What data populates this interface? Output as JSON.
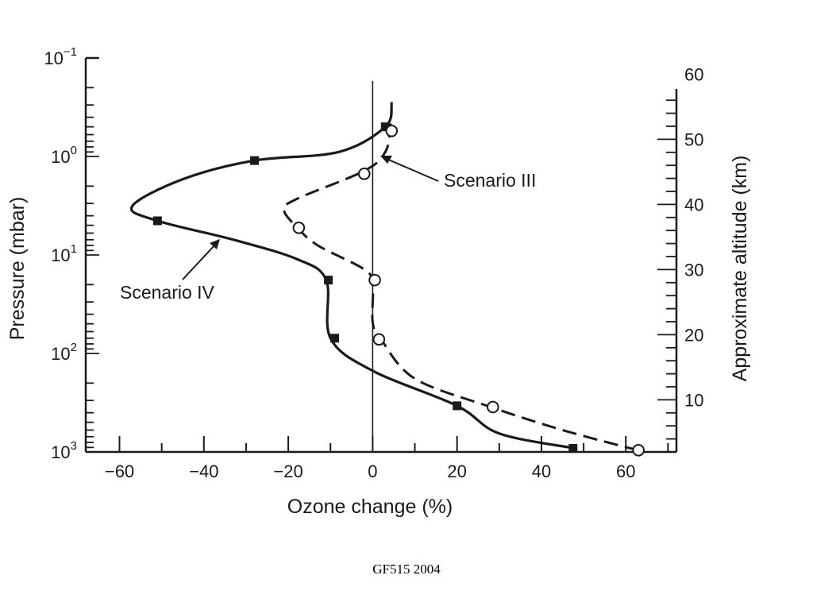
{
  "chart_data": {
    "type": "line",
    "title": "",
    "xlabel": "Ozone change (%)",
    "ylabel_left": "Pressure (mbar)",
    "ylabel_right": "Approximate altitude (km)",
    "xlim": [
      -68,
      72
    ],
    "x_ticks": [
      -60,
      -40,
      -20,
      0,
      20,
      40,
      60
    ],
    "x_tick_labels": [
      "−60",
      "−40",
      "−20",
      "0",
      "20",
      "40",
      "60"
    ],
    "ylim_pressure": [
      0.1,
      1000
    ],
    "y_scale": "log, inverted (pressure increases downward)",
    "y_ticks_pressure": [
      {
        "value": 0.1,
        "base": "10",
        "exp": "−1"
      },
      {
        "value": 1,
        "base": "10",
        "exp": "0"
      },
      {
        "value": 10,
        "base": "10",
        "exp": "1"
      },
      {
        "value": 100,
        "base": "10",
        "exp": "2"
      },
      {
        "value": 1000,
        "base": "10",
        "exp": "3"
      }
    ],
    "y_ticks_altitude_km": [
      10,
      20,
      30,
      40,
      50,
      60
    ],
    "grid": false,
    "reference_line_x": 0,
    "series": [
      {
        "name": "Scenario IV",
        "style": "solid",
        "marker": "filled-square",
        "points": [
          {
            "x": 4.5,
            "p": 0.3
          },
          {
            "x": 3,
            "p": 0.5
          },
          {
            "x": -8,
            "p": 0.9
          },
          {
            "x": -28,
            "p": 1.1
          },
          {
            "x": -45,
            "p": 1.7
          },
          {
            "x": -57,
            "p": 3.2
          },
          {
            "x": -51,
            "p": 4.5
          },
          {
            "x": -33,
            "p": 7
          },
          {
            "x": -18,
            "p": 11
          },
          {
            "x": -11,
            "p": 18
          },
          {
            "x": -10,
            "p": 70
          },
          {
            "x": 0,
            "p": 150
          },
          {
            "x": 20,
            "p": 340
          },
          {
            "x": 30,
            "p": 650
          },
          {
            "x": 48,
            "p": 920
          }
        ],
        "markers": [
          {
            "x": 3,
            "p": 0.5
          },
          {
            "x": -28,
            "p": 1.1
          },
          {
            "x": -51,
            "p": 4.5
          },
          {
            "x": -10.5,
            "p": 18
          },
          {
            "x": -9,
            "p": 70
          },
          {
            "x": 20,
            "p": 340
          },
          {
            "x": 47.5,
            "p": 920
          }
        ]
      },
      {
        "name": "Scenario III",
        "style": "dashed",
        "marker": "open-circle",
        "points": [
          {
            "x": 4.5,
            "p": 0.28
          },
          {
            "x": 4.2,
            "p": 0.5
          },
          {
            "x": 3,
            "p": 0.9
          },
          {
            "x": -2,
            "p": 1.4
          },
          {
            "x": -18,
            "p": 2.7
          },
          {
            "x": -21,
            "p": 3.5
          },
          {
            "x": -18,
            "p": 5.2
          },
          {
            "x": -13,
            "p": 8
          },
          {
            "x": -2,
            "p": 14
          },
          {
            "x": 0,
            "p": 20
          },
          {
            "x": 0,
            "p": 48
          },
          {
            "x": 2,
            "p": 72
          },
          {
            "x": 10,
            "p": 180
          },
          {
            "x": 28,
            "p": 350
          },
          {
            "x": 45,
            "p": 600
          },
          {
            "x": 62,
            "p": 940
          }
        ],
        "markers": [
          {
            "x": 4.5,
            "p": 0.55
          },
          {
            "x": -2,
            "p": 1.5
          },
          {
            "x": -17.5,
            "p": 5.3
          },
          {
            "x": 0.5,
            "p": 18
          },
          {
            "x": 1.5,
            "p": 72
          },
          {
            "x": 28.5,
            "p": 350
          },
          {
            "x": 63,
            "p": 960
          }
        ]
      }
    ],
    "annotations": [
      {
        "text": "Scenario III",
        "series": "Scenario III"
      },
      {
        "text": "Scenario IV",
        "series": "Scenario IV"
      }
    ]
  },
  "footer": "GF515 2004"
}
